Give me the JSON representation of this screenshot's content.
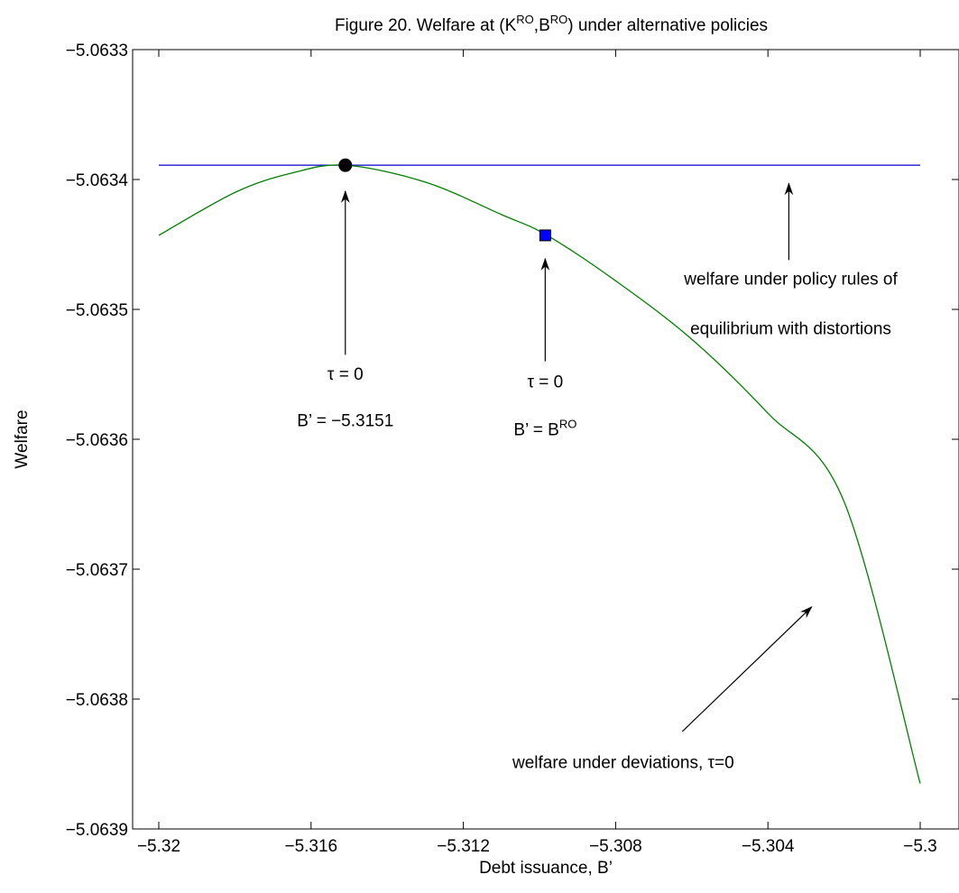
{
  "chart_data": {
    "type": "line",
    "title": {
      "prefix": "Figure 20. Welfare at (K",
      "sup1": "RO",
      "mid": ",B",
      "sup2": "RO",
      "suffix": ") under alternative policies"
    },
    "xlabel": "Debt issuance, B’",
    "ylabel": "Welfare",
    "xlim": [
      -5.32,
      -5.3
    ],
    "ylim": [
      -5.0639,
      -5.0633
    ],
    "xticks": [
      -5.32,
      -5.316,
      -5.312,
      -5.308,
      -5.304,
      -5.3
    ],
    "xtick_labels": [
      "−5.32",
      "−5.316",
      "−5.312",
      "−5.308",
      "−5.304",
      "−5.3"
    ],
    "yticks": [
      -5.0633,
      -5.0634,
      -5.0635,
      -5.0636,
      -5.0637,
      -5.0638,
      -5.0639
    ],
    "ytick_labels": [
      "−5.0633",
      "−5.0634",
      "−5.0635",
      "−5.0636",
      "−5.0637",
      "−5.0638",
      "−5.0639"
    ],
    "grid": false,
    "series": [
      {
        "id": "policy-rules",
        "color": "#0000cc",
        "x": [
          -5.32,
          -5.3
        ],
        "y": [
          -5.063389,
          -5.063389
        ]
      },
      {
        "id": "deviations",
        "color": "#007f00",
        "x": [
          -5.32,
          -5.318,
          -5.3165,
          -5.3151,
          -5.313,
          -5.311,
          -5.3098,
          -5.308,
          -5.306,
          -5.304,
          -5.302,
          -5.3
        ],
        "y": [
          -5.063443,
          -5.06341,
          -5.063395,
          -5.063389,
          -5.063402,
          -5.063427,
          -5.063443,
          -5.063478,
          -5.063523,
          -5.06358,
          -5.063648,
          -5.063865
        ]
      }
    ],
    "markers": [
      {
        "id": "optimum",
        "shape": "circle",
        "color": "#000000",
        "x": -5.3151,
        "y": -5.063389
      },
      {
        "id": "bro",
        "shape": "square",
        "color": "#0000ff",
        "x": -5.30985,
        "y": -5.063443
      }
    ],
    "annotations": [
      {
        "id": "optimum",
        "lines": [
          "τ = 0",
          "B’ = −5.3151"
        ],
        "text_x": -5.3151,
        "text_y": [
          -5.063554,
          -5.06359
        ],
        "arrow_from": [
          -5.3151,
          -5.063535
        ],
        "arrow_to": [
          -5.3151,
          -5.063409
        ]
      },
      {
        "id": "bro",
        "lines": [
          "τ = 0",
          "B’ = B",
          "RO"
        ],
        "text_x": -5.30985,
        "text_y": [
          -5.06356,
          -5.063597
        ],
        "arrow_from": [
          -5.30985,
          -5.06354
        ],
        "arrow_to": [
          -5.30985,
          -5.063461
        ]
      },
      {
        "id": "policy",
        "lines": [
          "welfare under policy rules of",
          "equilibrium with distortions"
        ],
        "text_x": -5.3034,
        "text_y": [
          -5.063481,
          -5.063519
        ],
        "arrow_from": [
          -5.30345,
          -5.063462
        ],
        "arrow_to": [
          -5.30345,
          -5.063403
        ]
      },
      {
        "id": "deviations",
        "lines": [
          "welfare under deviations, τ=0"
        ],
        "text_x": -5.3078,
        "text_y": [
          -5.063853
        ],
        "arrow_from": [
          -5.30625,
          -5.063825
        ],
        "arrow_to": [
          -5.30285,
          -5.063729
        ]
      }
    ]
  }
}
